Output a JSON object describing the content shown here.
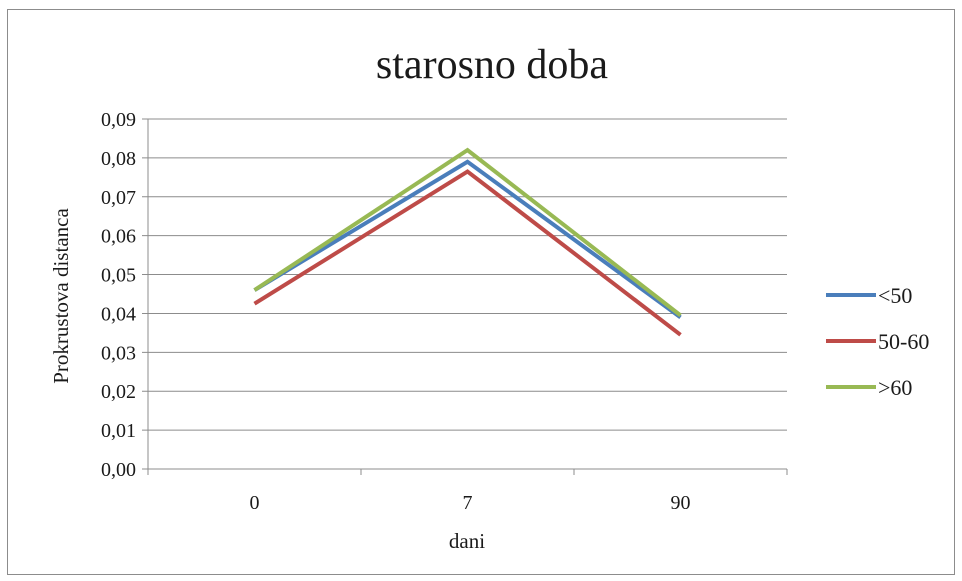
{
  "chart_data": {
    "type": "line",
    "title": "starosno doba",
    "xlabel": "dani",
    "ylabel": "Prokrustova distanca",
    "categories": [
      "0",
      "7",
      "90"
    ],
    "ylim": [
      0,
      0.09
    ],
    "ytick_step": 0.01,
    "ytick_labels": [
      "0,00",
      "0,01",
      "0,02",
      "0,03",
      "0,04",
      "0,05",
      "0,06",
      "0,07",
      "0,08",
      "0,09"
    ],
    "grid": "horizontal",
    "legend_position": "right",
    "series": [
      {
        "name": "<50",
        "color": "#4a7ebb",
        "values": [
          0.046,
          0.079,
          0.039
        ]
      },
      {
        "name": "50-60",
        "color": "#be4b48",
        "values": [
          0.0425,
          0.0765,
          0.0345
        ]
      },
      {
        "name": ">60",
        "color": "#98b954",
        "values": [
          0.046,
          0.082,
          0.0395
        ]
      }
    ]
  }
}
